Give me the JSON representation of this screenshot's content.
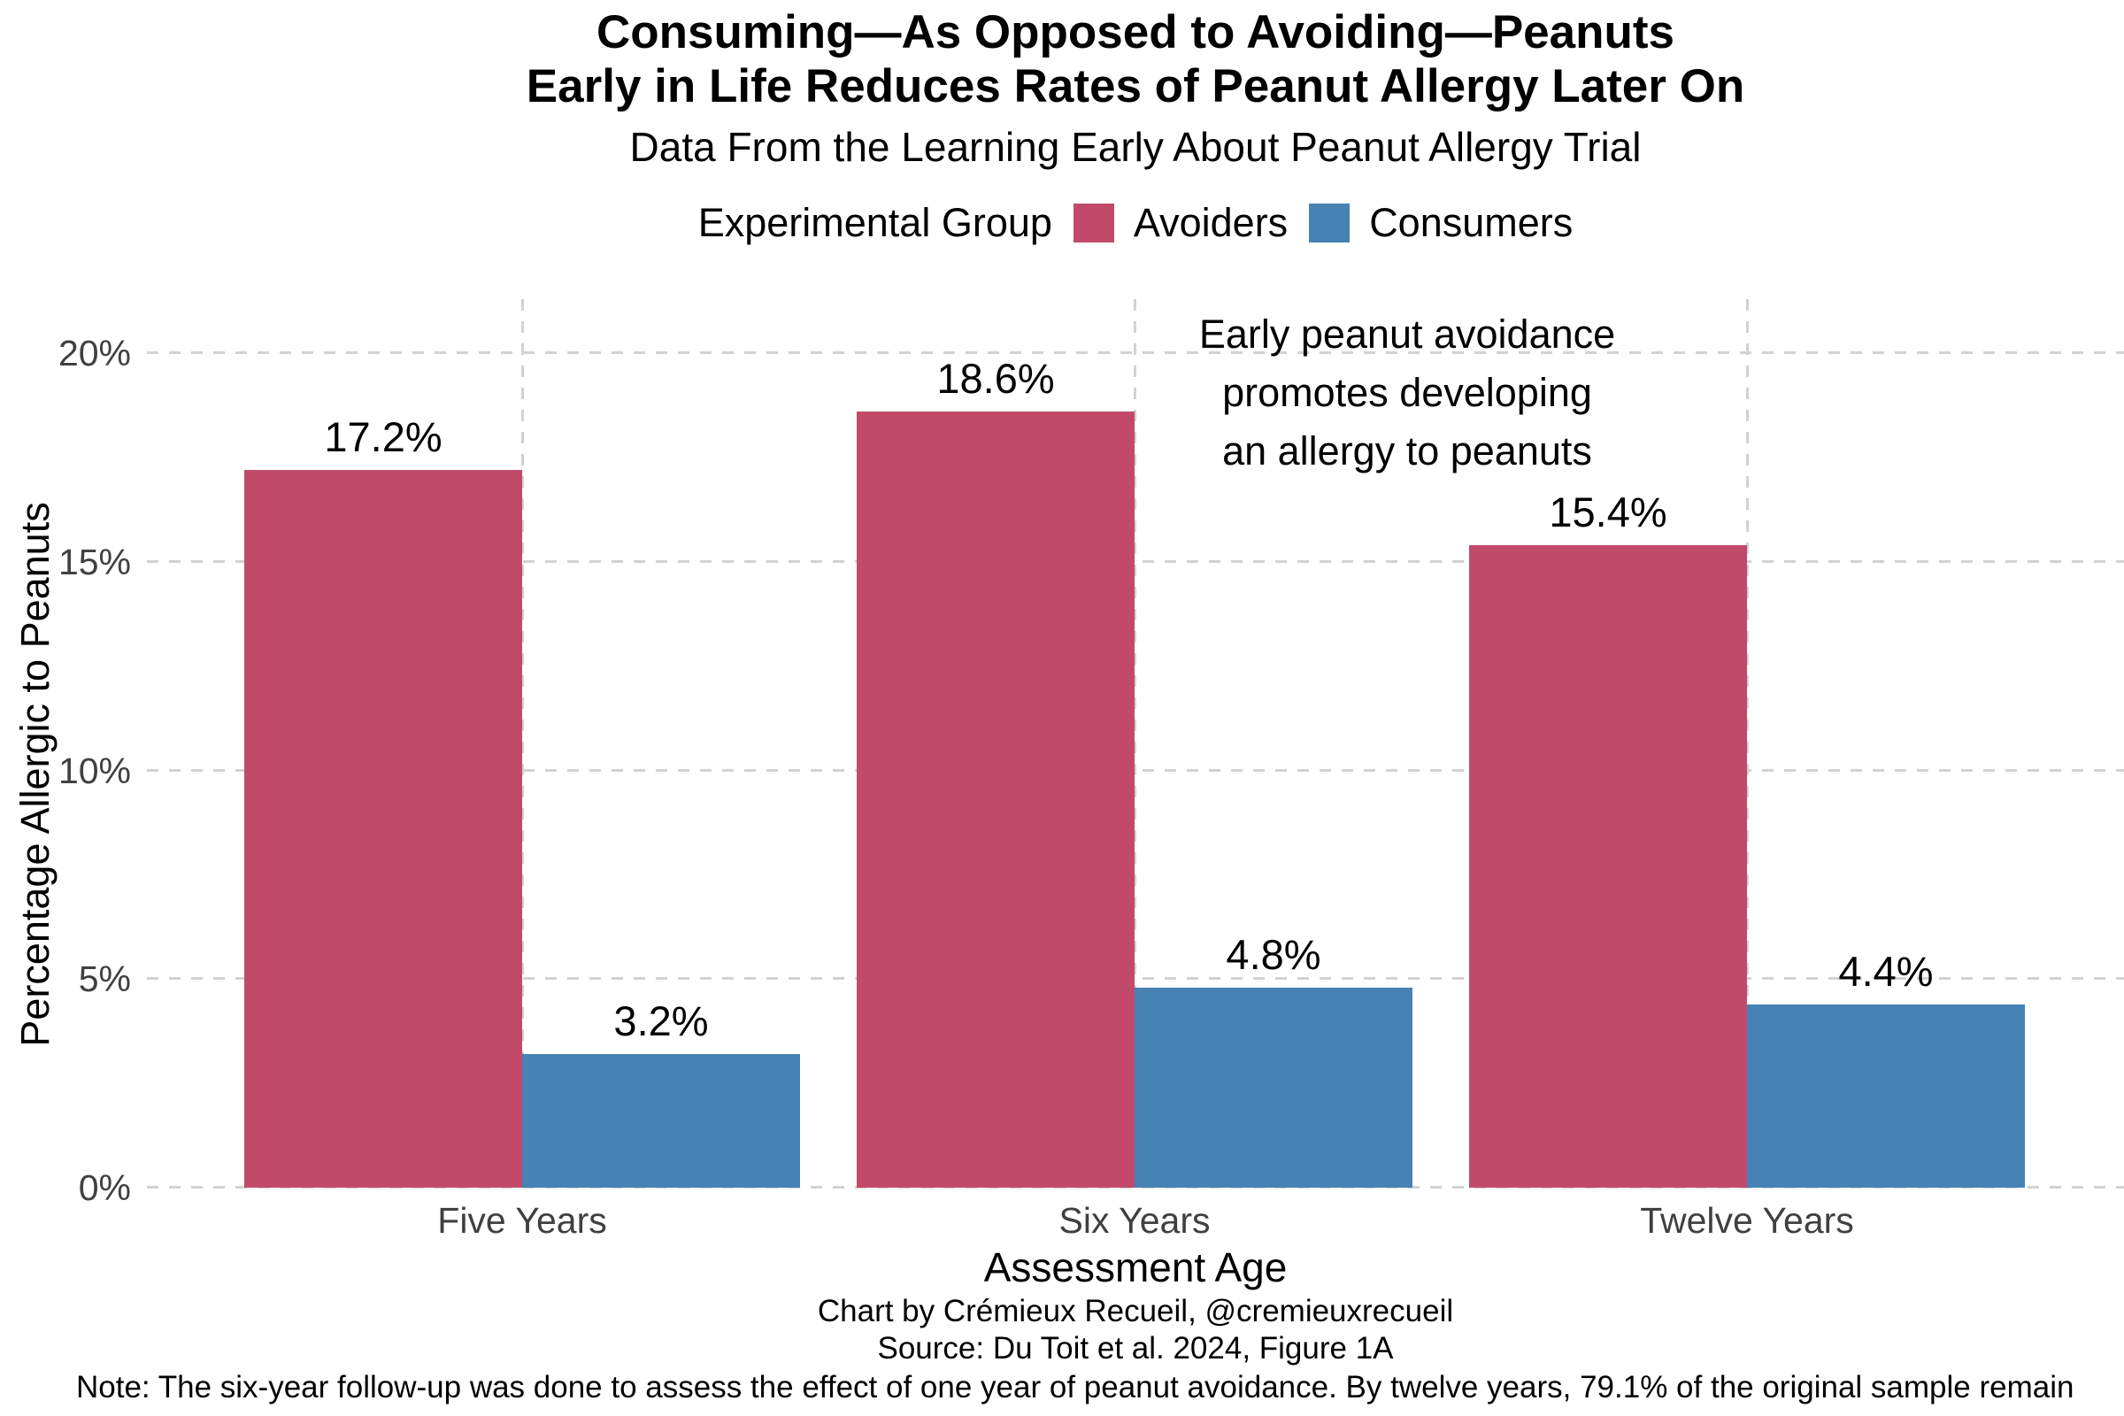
{
  "header": {
    "title_line1": "Consuming—As Opposed to Avoiding—Peanuts",
    "title_line2": "Early in Life Reduces Rates of Peanut Allergy Later On",
    "subtitle": "Data From the Learning Early About Peanut Allergy Trial"
  },
  "legend": {
    "title": "Experimental Group",
    "items": [
      {
        "label": "Avoiders",
        "color": "#C14A6B"
      },
      {
        "label": "Consumers",
        "color": "#4682B4"
      }
    ]
  },
  "chart_data": {
    "type": "bar",
    "categories": [
      "Five Years",
      "Six Years",
      "Twelve Years"
    ],
    "series": [
      {
        "name": "Avoiders",
        "color": "#C14A6B",
        "values": [
          17.2,
          18.6,
          15.4
        ],
        "labels": [
          "17.2%",
          "18.6%",
          "15.4%"
        ]
      },
      {
        "name": "Consumers",
        "color": "#4682B4",
        "values": [
          3.2,
          4.8,
          4.4
        ],
        "labels": [
          "3.2%",
          "4.8%",
          "4.4%"
        ]
      }
    ],
    "xlabel": "Assessment Age",
    "ylabel": "Percentage Allergic to Peanuts",
    "y_ticks": [
      {
        "value": 0,
        "label": "0%"
      },
      {
        "value": 5,
        "label": "5%"
      },
      {
        "value": 10,
        "label": "10%"
      },
      {
        "value": 15,
        "label": "15%"
      },
      {
        "value": 20,
        "label": "20%"
      }
    ],
    "ylim": [
      0,
      21.3
    ],
    "grid": "dashed",
    "legend_position": "top",
    "annotation": {
      "lines": [
        "Early peanut avoidance",
        "promotes developing",
        "an allergy to peanuts"
      ]
    }
  },
  "footer": {
    "caption_line1": "Chart by Crémieux Recueil, @cremieuxrecueil",
    "caption_line2": "Source: Du Toit et al. 2024, Figure 1A",
    "note": "Note: The six-year follow-up was done to assess the effect of one year of peanut avoidance. By twelve years, 79.1% of the original sample remain"
  }
}
